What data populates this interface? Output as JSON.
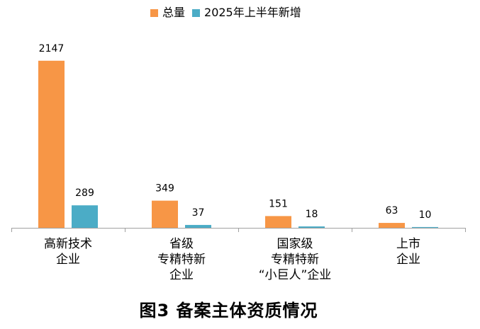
{
  "chart_data": {
    "type": "bar",
    "title": "图3 备案主体资质情况",
    "xlabel": "",
    "ylabel": "",
    "categories": [
      "高新技术\n企业",
      "省级\n专精特新\n企业",
      "国家级\n专精特新\n“小巨人”企业",
      "上市\n企业"
    ],
    "series": [
      {
        "name": "总量",
        "color": "#F79646",
        "values": [
          2147,
          349,
          151,
          63
        ]
      },
      {
        "name": "2025年上半年新增",
        "color": "#4BACC6",
        "values": [
          289,
          37,
          18,
          10
        ]
      }
    ],
    "ylim": [
      0,
      2500
    ],
    "grid": false,
    "legend": "top",
    "data_labels": true,
    "axis_color": "#A0A0A0"
  }
}
